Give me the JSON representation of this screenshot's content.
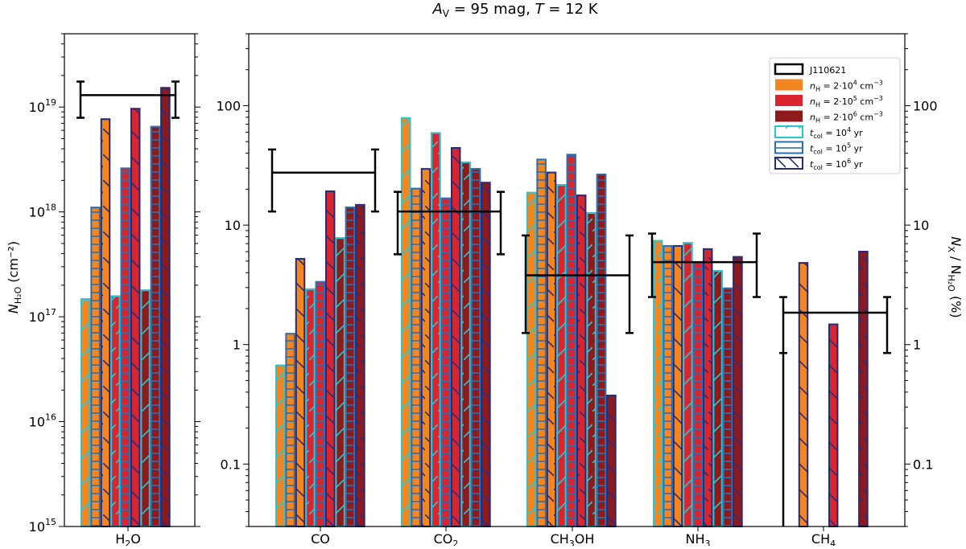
{
  "title": {
    "av_symbol": "A",
    "av_sub": "V",
    "av_value": " = 95 mag,  ",
    "t_symbol": "T",
    "t_value": " = 12 K"
  },
  "colors": {
    "nH_1e4": "#f5861f",
    "nH_1e5": "#d9262e",
    "nH_1e6": "#8e1a1c",
    "t_1e4": "#2ec4cf",
    "t_1e5": "#2a6fb3",
    "t_1e6": "#262c7a",
    "obs": "#000000"
  },
  "left_axis": {
    "label_N": "N",
    "label_sub": "H₂O",
    "label_unit": "  (cm⁻²)",
    "scale": "log",
    "ylim": [
      1000000000000000.0,
      5e+19
    ],
    "ticks": [
      {
        "value": 1000000000000000.0,
        "label_base": "10",
        "label_exp": "15"
      },
      {
        "value": 1e+16,
        "label_base": "10",
        "label_exp": "16"
      },
      {
        "value": 1e+17,
        "label_base": "10",
        "label_exp": "17"
      },
      {
        "value": 1e+18,
        "label_base": "10",
        "label_exp": "18"
      },
      {
        "value": 1e+19,
        "label_base": "10",
        "label_exp": "19"
      }
    ]
  },
  "right_axis": {
    "label_N": "N",
    "label_subx": "X",
    "label_mid": " / N",
    "label_sub": "H₂O",
    "label_unit": "  (%)",
    "scale": "log",
    "ylim": [
      0.03,
      400
    ],
    "ticks": [
      {
        "value": 0.1,
        "label": "0.1"
      },
      {
        "value": 1,
        "label": "1"
      },
      {
        "value": 10,
        "label": "10"
      },
      {
        "value": 100,
        "label": "100"
      }
    ]
  },
  "legend": {
    "location": "upper right",
    "entries": [
      {
        "kind": "obs",
        "label": "J110621"
      },
      {
        "kind": "fill",
        "color": "#f5861f",
        "sym": "n",
        "sub": "H",
        "pre": " = 2·10",
        "exp": "4",
        "post": " cm",
        "unit_exp": "−3"
      },
      {
        "kind": "fill",
        "color": "#d9262e",
        "sym": "n",
        "sub": "H",
        "pre": " = 2·10",
        "exp": "5",
        "post": " cm",
        "unit_exp": "−3"
      },
      {
        "kind": "fill",
        "color": "#8e1a1c",
        "sym": "n",
        "sub": "H",
        "pre": " = 2·10",
        "exp": "6",
        "post": " cm",
        "unit_exp": "−3"
      },
      {
        "kind": "hatch",
        "color": "#2ec4cf",
        "hatch": "slash",
        "sym": "t",
        "sub": "col",
        "pre": " = 10",
        "exp": "4",
        "post": " yr"
      },
      {
        "kind": "hatch",
        "color": "#2a6fb3",
        "hatch": "horiz",
        "sym": "t",
        "sub": "col",
        "pre": " = 10",
        "exp": "5",
        "post": " yr"
      },
      {
        "kind": "hatch",
        "color": "#262c7a",
        "hatch": "back",
        "sym": "t",
        "sub": "col",
        "pre": " = 10",
        "exp": "6",
        "post": " yr"
      }
    ]
  },
  "chart_data": [
    {
      "type": "bar",
      "panel": "H2O",
      "scale": "log",
      "ylabel": "N(H2O) (cm^-2)",
      "categories": [
        {
          "main": "H",
          "sub": "2",
          "tail": "O"
        }
      ],
      "bar_order": [
        "nH=2e4 tcol=1e4",
        "nH=2e4 tcol=1e5",
        "nH=2e4 tcol=1e6",
        "nH=2e5 tcol=1e4",
        "nH=2e5 tcol=1e5",
        "nH=2e5 tcol=1e6",
        "nH=2e6 tcol=1e4",
        "nH=2e6 tcol=1e5",
        "nH=2e6 tcol=1e6"
      ],
      "bars": [
        [
          1.5e+17,
          1.12e+18,
          7.8e+18,
          1.6e+17,
          2.65e+18,
          9.8e+18,
          1.82e+17,
          6.6e+18,
          1.55e+19
        ]
      ],
      "observed": [
        {
          "value": 1.3e+19,
          "err_low": 7.9e+18,
          "err_high": 1.75e+19
        }
      ]
    },
    {
      "type": "bar",
      "panel": "abundance",
      "scale": "log",
      "ylabel": "N(X)/N(H2O) (%)",
      "categories": [
        {
          "main": "CO",
          "sub": "",
          "tail": ""
        },
        {
          "main": "CO",
          "sub": "2",
          "tail": ""
        },
        {
          "main": "CH",
          "sub": "3",
          "tail": "OH"
        },
        {
          "main": "NH",
          "sub": "3",
          "tail": ""
        },
        {
          "main": "CH",
          "sub": "4",
          "tail": ""
        }
      ],
      "bar_order": [
        "nH=2e4 tcol=1e4",
        "nH=2e4 tcol=1e5",
        "nH=2e4 tcol=1e6",
        "nH=2e5 tcol=1e4",
        "nH=2e5 tcol=1e5",
        "nH=2e5 tcol=1e6",
        "nH=2e6 tcol=1e4",
        "nH=2e6 tcol=1e5",
        "nH=2e6 tcol=1e6"
      ],
      "bars": [
        [
          0.68,
          1.25,
          5.3,
          2.95,
          3.4,
          19.5,
          7.9,
          14.3,
          15.0
        ],
        [
          80,
          20.5,
          30,
          60,
          17,
          45,
          34,
          30,
          23
        ],
        [
          19,
          36,
          28,
          22,
          39.5,
          18,
          12.8,
          27,
          0.38
        ],
        [
          7.5,
          6.8,
          6.8,
          7.2,
          4.9,
          6.4,
          4.2,
          3.0,
          5.5
        ],
        [
          null,
          null,
          4.9,
          null,
          null,
          1.5,
          null,
          null,
          6.1
        ]
      ],
      "observed": [
        {
          "value": 27.5,
          "err_low": 13.0,
          "err_high": 43.0
        },
        {
          "value": 13.0,
          "err_low": 5.7,
          "err_high": 19.0
        },
        {
          "value": 3.8,
          "err_low": 1.25,
          "err_high": 8.2
        },
        {
          "value": 4.9,
          "err_low": 2.5,
          "err_high": 8.5
        },
        {
          "value": 1.85,
          "err_low": 0.85,
          "err_high": 2.5
        }
      ]
    }
  ]
}
